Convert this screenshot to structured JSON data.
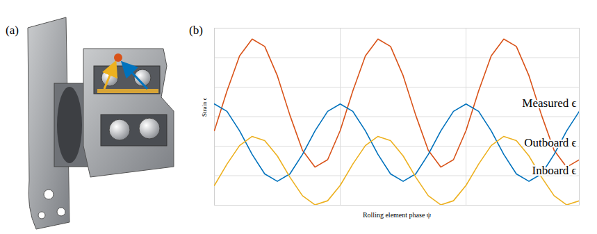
{
  "illustration": {
    "panel_label": "(a)"
  },
  "chart_data": {
    "type": "line",
    "panel_label": "(b)",
    "xlabel": "Rolling element phase ψ",
    "ylabel": "Strain ϵ",
    "x": [
      0,
      0.1,
      0.2,
      0.3,
      0.4,
      0.5,
      0.6,
      0.7,
      0.8,
      0.9,
      1.0,
      1.1,
      1.2,
      1.3,
      1.4,
      1.5,
      1.6,
      1.7,
      1.8,
      1.9,
      2.0,
      2.1,
      2.2,
      2.3,
      2.4,
      2.5,
      2.6,
      2.7,
      2.8,
      2.9
    ],
    "series": [
      {
        "name": "Measured ϵ",
        "color": "#d95319",
        "values": [
          2.53,
          3.87,
          5.06,
          5.63,
          5.38,
          4.39,
          3.05,
          1.86,
          1.29,
          1.54,
          2.53,
          3.87,
          5.06,
          5.63,
          5.38,
          4.39,
          3.05,
          1.86,
          1.29,
          1.54,
          2.53,
          3.87,
          5.06,
          5.63,
          5.38,
          4.39,
          3.05,
          1.86,
          1.29,
          1.54
        ]
      },
      {
        "name": "Outboard ϵ",
        "color": "#0072bd",
        "values": [
          3.43,
          3.18,
          2.52,
          1.72,
          1.06,
          0.81,
          1.06,
          1.72,
          2.52,
          3.18,
          3.43,
          3.18,
          2.52,
          1.72,
          1.06,
          0.81,
          1.06,
          1.72,
          2.52,
          3.18,
          3.43,
          3.18,
          2.52,
          1.72,
          1.06,
          0.81,
          1.06,
          1.72,
          2.52,
          3.18
        ]
      },
      {
        "name": "Inboard ϵ",
        "color": "#edb120",
        "values": [
          0.67,
          1.39,
          2.02,
          2.33,
          2.19,
          1.67,
          0.95,
          0.32,
          0.01,
          0.15,
          0.67,
          1.39,
          2.02,
          2.33,
          2.19,
          1.67,
          0.95,
          0.32,
          0.01,
          0.15,
          0.67,
          1.39,
          2.02,
          2.33,
          2.19,
          1.67,
          0.95,
          0.32,
          0.01,
          0.15
        ]
      }
    ],
    "xlim": [
      0,
      2.9
    ],
    "xticks": [
      1,
      2
    ],
    "ylim": [
      0,
      6
    ],
    "yticks": [
      1,
      2,
      3,
      4,
      5
    ],
    "grid": true,
    "tick_labels": false
  }
}
